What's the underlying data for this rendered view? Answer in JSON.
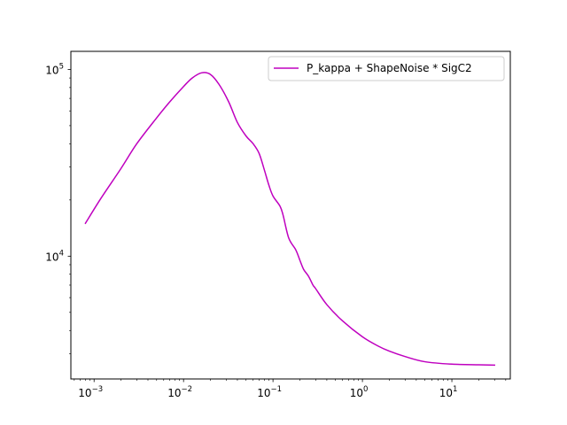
{
  "chart_data": {
    "type": "line",
    "title": "",
    "xlabel": "",
    "ylabel": "",
    "xscale": "log",
    "yscale": "log",
    "xlim": [
      0.00055,
      45
    ],
    "ylim": [
      2200,
      125000
    ],
    "grid": false,
    "legend_position": "top-right",
    "x_ticks": [
      {
        "value": 0.001,
        "base": "10",
        "exp": "−3"
      },
      {
        "value": 0.01,
        "base": "10",
        "exp": "−2"
      },
      {
        "value": 0.1,
        "base": "10",
        "exp": "−1"
      },
      {
        "value": 1,
        "base": "10",
        "exp": "0"
      },
      {
        "value": 10,
        "base": "10",
        "exp": "1"
      }
    ],
    "y_ticks": [
      {
        "value": 10000,
        "base": "10",
        "exp": "4"
      },
      {
        "value": 100000,
        "base": "10",
        "exp": "5"
      }
    ],
    "series": [
      {
        "name": "P_kappa + ShapeNoise * SigC2",
        "color": "#bf00bf",
        "points": [
          [
            0.0008,
            15000
          ],
          [
            0.0012,
            20500
          ],
          [
            0.002,
            29500
          ],
          [
            0.003,
            40000
          ],
          [
            0.005,
            55000
          ],
          [
            0.007,
            67000
          ],
          [
            0.01,
            81000
          ],
          [
            0.0125,
            90000
          ],
          [
            0.016,
            96000
          ],
          [
            0.02,
            94000
          ],
          [
            0.025,
            83000
          ],
          [
            0.032,
            67000
          ],
          [
            0.04,
            52000
          ],
          [
            0.05,
            44000
          ],
          [
            0.06,
            40000
          ],
          [
            0.07,
            35500
          ],
          [
            0.08,
            29000
          ],
          [
            0.09,
            24000
          ],
          [
            0.1,
            21000
          ],
          [
            0.12,
            18500
          ],
          [
            0.13,
            16500
          ],
          [
            0.15,
            12500
          ],
          [
            0.18,
            10800
          ],
          [
            0.2,
            9500
          ],
          [
            0.22,
            8500
          ],
          [
            0.25,
            7800
          ],
          [
            0.28,
            7000
          ],
          [
            0.3,
            6700
          ],
          [
            0.4,
            5500
          ],
          [
            0.6,
            4500
          ],
          [
            1.0,
            3700
          ],
          [
            1.5,
            3300
          ],
          [
            2.0,
            3100
          ],
          [
            3.0,
            2900
          ],
          [
            5.0,
            2720
          ],
          [
            10,
            2640
          ],
          [
            20,
            2620
          ],
          [
            30,
            2610
          ]
        ]
      }
    ]
  }
}
